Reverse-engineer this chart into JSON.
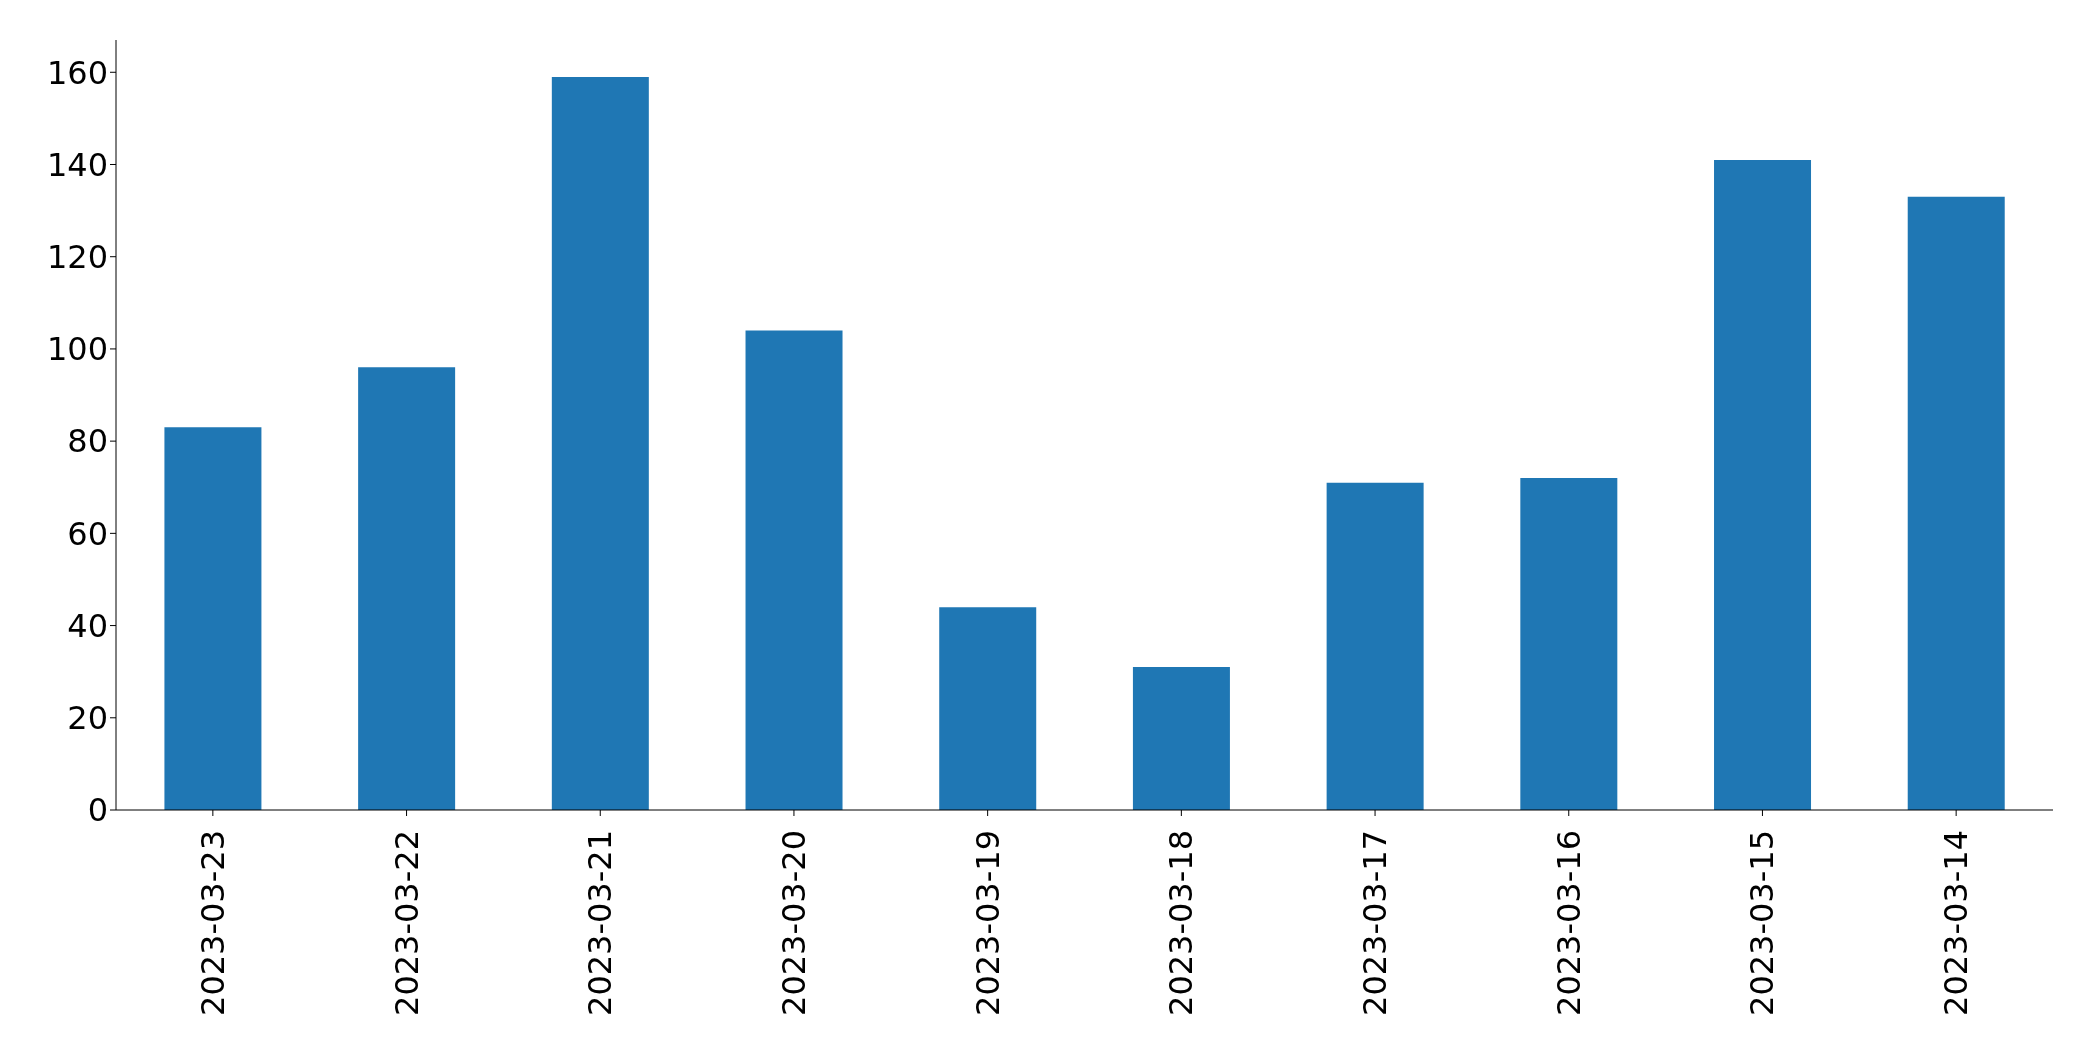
{
  "chart_data": {
    "type": "bar",
    "categories": [
      "2023-03-23",
      "2023-03-22",
      "2023-03-21",
      "2023-03-20",
      "2023-03-19",
      "2023-03-18",
      "2023-03-17",
      "2023-03-16",
      "2023-03-15",
      "2023-03-14"
    ],
    "values": [
      83,
      96,
      159,
      104,
      44,
      31,
      71,
      72,
      141,
      133
    ],
    "color": "#1f77b4",
    "ylim": [
      0,
      167
    ],
    "yticks": [
      0,
      20,
      40,
      60,
      80,
      100,
      120,
      140,
      160
    ],
    "grid": false,
    "legend": false
  }
}
